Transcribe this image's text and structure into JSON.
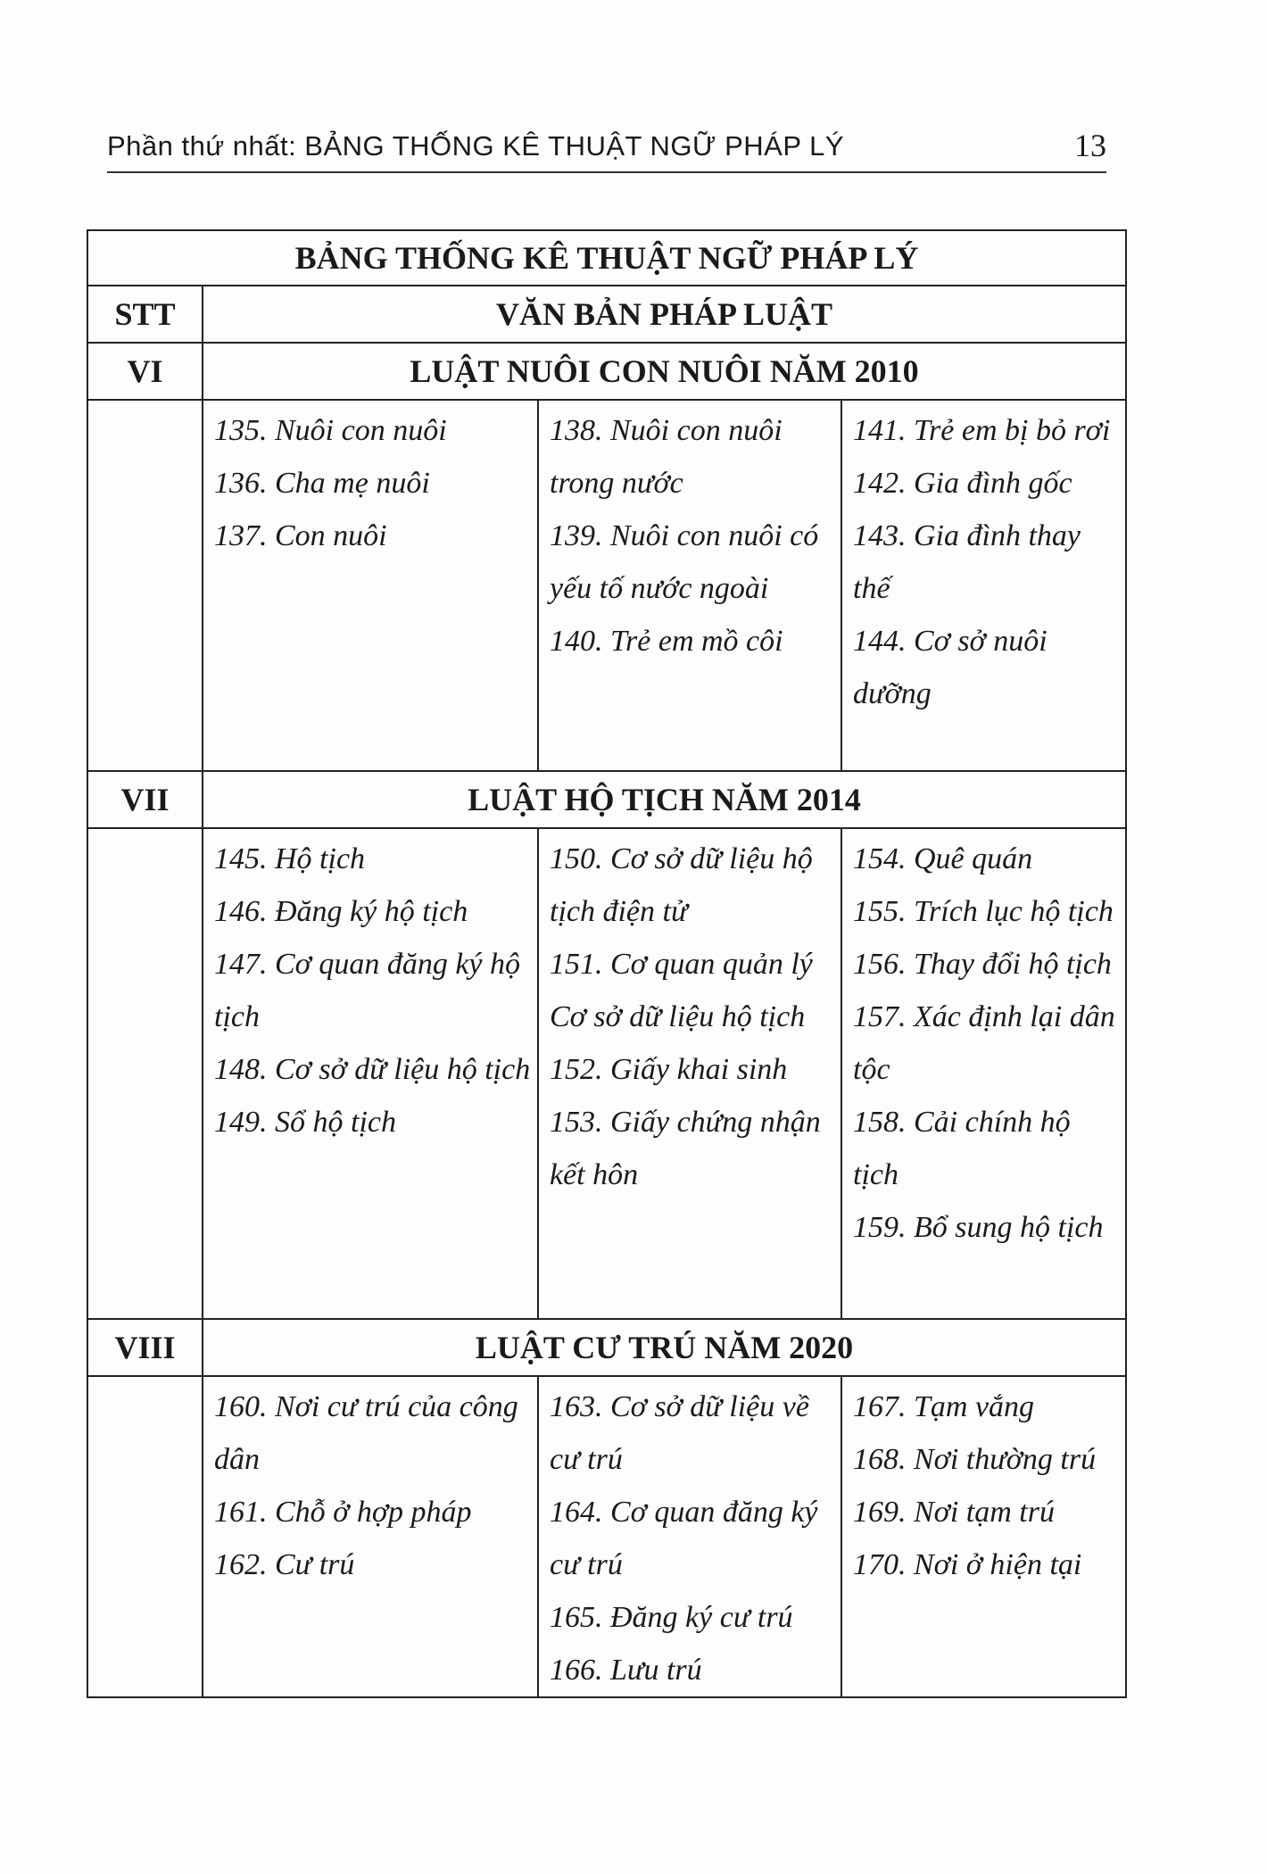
{
  "header": {
    "title": "Phần thứ nhất: BẢNG THỐNG KÊ THUẬT NGỮ PHÁP LÝ",
    "page_number": "13"
  },
  "table": {
    "title": "BẢNG THỐNG KÊ THUẬT NGỮ PHÁP LÝ",
    "columns": [
      "STT",
      "VĂN BẢN PHÁP LUẬT"
    ],
    "sections": [
      {
        "number": "VI",
        "name": "LUẬT NUÔI CON NUÔI NĂM 2010",
        "columns": [
          [
            "135. Nuôi con nuôi",
            "136. Cha mẹ nuôi",
            "137. Con nuôi"
          ],
          [
            "138. Nuôi con nuôi trong nước",
            "139. Nuôi con nuôi có yếu tố nước ngoài",
            "140. Trẻ em mồ côi"
          ],
          [
            "141. Trẻ em bị bỏ rơi",
            "142. Gia đình gốc",
            "143. Gia đình thay thế",
            "144. Cơ sở nuôi dưỡng"
          ]
        ]
      },
      {
        "number": "VII",
        "name": "LUẬT HỘ TỊCH NĂM 2014",
        "columns": [
          [
            "145. Hộ tịch",
            "146. Đăng ký hộ tịch",
            "147. Cơ quan đăng ký hộ tịch",
            "148. Cơ sở dữ liệu hộ tịch",
            "149. Sổ hộ tịch"
          ],
          [
            "150. Cơ sở dữ liệu hộ tịch điện tử",
            "151. Cơ quan quản lý Cơ sở dữ liệu hộ tịch",
            "152. Giấy khai sinh",
            "153. Giấy chứng nhận kết hôn"
          ],
          [
            "154. Quê quán",
            "155. Trích lục hộ tịch",
            "156. Thay đổi hộ tịch",
            "157. Xác định lại dân tộc",
            "158. Cải chính hộ tịch",
            "159. Bổ sung hộ tịch"
          ]
        ]
      },
      {
        "number": "VIII",
        "name": "LUẬT CƯ TRÚ NĂM 2020",
        "columns": [
          [
            "160. Nơi cư trú của công dân",
            "161. Chỗ ở hợp pháp",
            "162. Cư trú"
          ],
          [
            "163. Cơ sở dữ liệu về cư trú",
            "164. Cơ quan đăng ký cư trú",
            "165. Đăng ký cư trú",
            "166. Lưu trú"
          ],
          [
            "167. Tạm vắng",
            "168. Nơi thường trú",
            "169. Nơi tạm trú",
            "170. Nơi ở hiện tại"
          ]
        ]
      }
    ]
  }
}
